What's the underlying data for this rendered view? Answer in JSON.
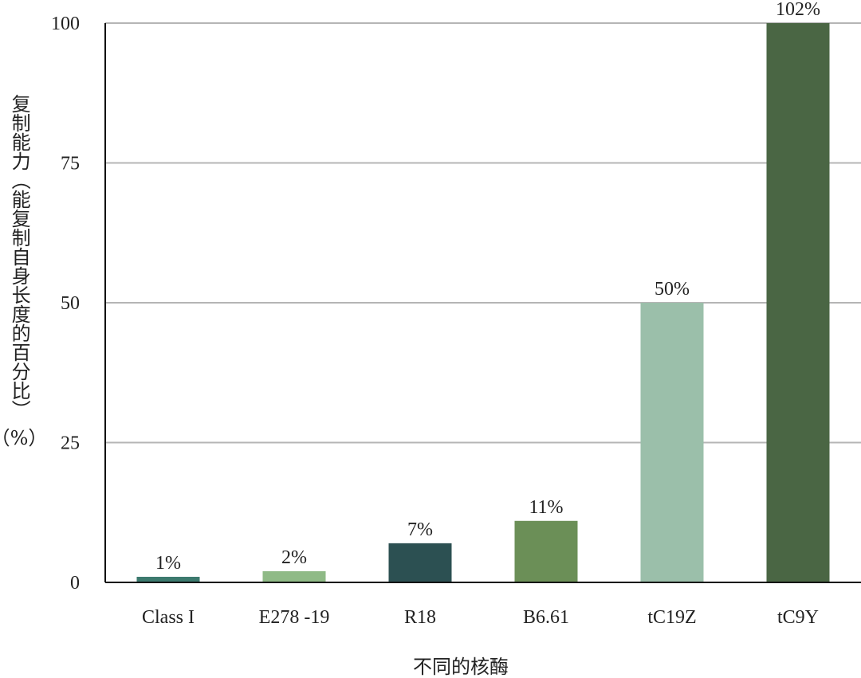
{
  "chart_data": {
    "type": "bar",
    "title": "",
    "xlabel": "不同的核酶",
    "ylabel": "复制能力（能复制自身长度的百分比）",
    "ylabel_unit": "（%）",
    "categories": [
      "Class I",
      "E278 -19",
      "R18",
      "B6.61",
      "tC19Z",
      "tC9Y"
    ],
    "values": [
      1,
      2,
      7,
      11,
      50,
      102
    ],
    "data_labels": [
      "1%",
      "2%",
      "7%",
      "11%",
      "50%",
      "102%"
    ],
    "bar_colors": [
      "#3c7a6e",
      "#8fba86",
      "#2c5052",
      "#6b8f57",
      "#9bbfaa",
      "#4a6644"
    ],
    "ylim": [
      0,
      100
    ],
    "yticks": [
      0,
      25,
      50,
      75,
      100
    ],
    "grid": true,
    "legend": "none"
  }
}
